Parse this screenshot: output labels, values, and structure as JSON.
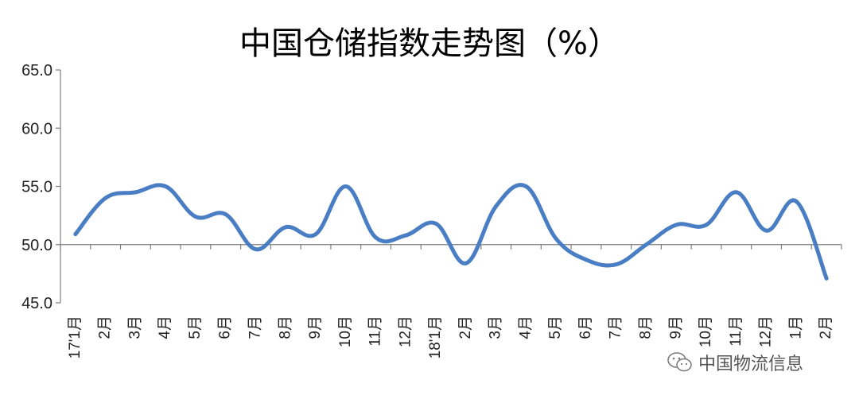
{
  "chart_data": {
    "type": "line",
    "title": "中国仓储指数走势图（%）",
    "xlabel": "",
    "ylabel": "",
    "ylim": [
      45,
      65
    ],
    "yticks": [
      "45.0",
      "50.0",
      "55.0",
      "60.0",
      "65.0"
    ],
    "grid": false,
    "legend": "none",
    "line_color": "#4a7ec4",
    "categories": [
      "17'1月",
      "2月",
      "3月",
      "4月",
      "5月",
      "6月",
      "7月",
      "8月",
      "9月",
      "10月",
      "11月",
      "12月",
      "18'1月",
      "2月",
      "3月",
      "4月",
      "5月",
      "6月",
      "7月",
      "8月",
      "9月",
      "10月",
      "11月",
      "12月",
      "1月",
      "2月"
    ],
    "series": [
      {
        "values": [
          50.9,
          54.0,
          54.5,
          55.0,
          52.4,
          52.6,
          49.6,
          51.5,
          50.9,
          55.0,
          50.6,
          50.8,
          51.8,
          48.4,
          53.3,
          55.0,
          50.5,
          48.7,
          48.3,
          50.0,
          51.7,
          51.7,
          54.5,
          51.2,
          53.7,
          47.1
        ]
      }
    ]
  },
  "watermark": {
    "text": "中国物流信息"
  }
}
